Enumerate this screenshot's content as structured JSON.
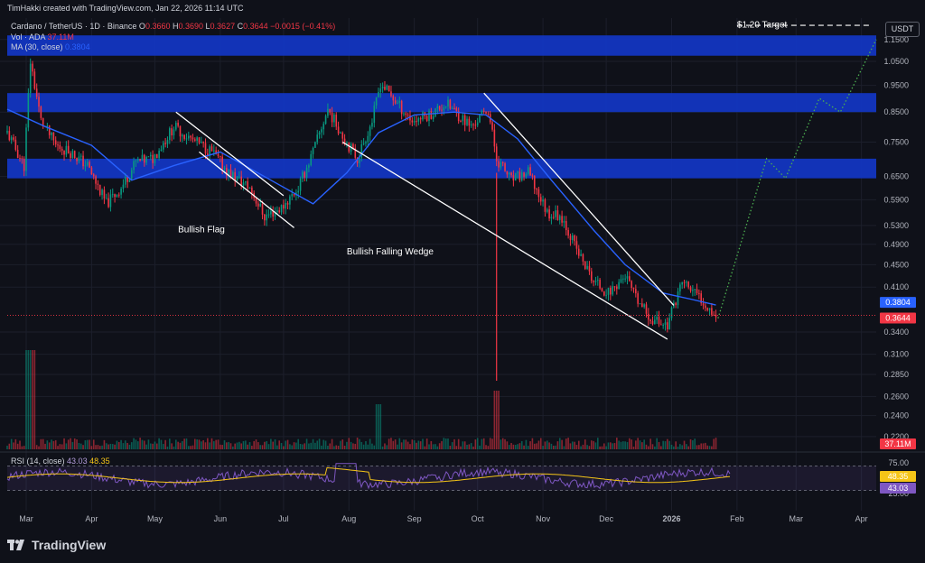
{
  "header": {
    "attribution": "TimHakki created with TradingView.com, Jan 22, 2026 11:14 UTC"
  },
  "legend": {
    "symbol": "Cardano / TetherUS · 1D · Binance",
    "o_label": "O",
    "o_value": "0.3660",
    "h_label": "H",
    "h_value": "0.3690",
    "l_label": "L",
    "l_value": "0.3627",
    "c_label": "C",
    "c_value": "0.3644",
    "change": "−0.0015 (−0.41%)",
    "vol_label": "Vol · ADA",
    "vol_value": "37.11M",
    "ma_label": "MA (30, close)",
    "ma_value": "0.3804",
    "rsi_label": "RSI (14, close)",
    "rsi_value": "43.03",
    "rsi_ma_value": "48.35"
  },
  "currency_button": "USDT",
  "footer": {
    "brand": "TradingView"
  },
  "colors": {
    "background": "#0f1119",
    "up": "#089981",
    "down": "#f23645",
    "ma": "#2962ff",
    "zone": "#1236c4",
    "rsi": "#7e57c2",
    "rsi_ma": "#f5c518",
    "projection": "#4caf50",
    "trendline": "#ffffff"
  },
  "chart_data": {
    "type": "candlestick",
    "scale": "log",
    "x_ticks": [
      "Mar",
      "Apr",
      "May",
      "Jun",
      "Jul",
      "Aug",
      "Sep",
      "Oct",
      "Nov",
      "Dec",
      "2026",
      "Feb",
      "Mar",
      "Apr"
    ],
    "y_ticks": [
      "1.1500",
      "1.0500",
      "0.9500",
      "0.8500",
      "0.7500",
      "0.6500",
      "0.5900",
      "0.5300",
      "0.4900",
      "0.4500",
      "0.4100",
      "0.3400",
      "0.3100",
      "0.2850",
      "0.2600",
      "0.2400",
      "0.2200"
    ],
    "price_labels": {
      "ma": "0.3804",
      "last": "0.3644",
      "volume": "37.11M"
    },
    "rsi_ticks": [
      "75.00",
      "25.00"
    ],
    "rsi_labels": {
      "rsi_ma": "48.35",
      "rsi": "43.03"
    },
    "price_path": [
      [
        "2025-02-20",
        0.78
      ],
      [
        "2025-02-28",
        0.68
      ],
      [
        "2025-03-03",
        1.05
      ],
      [
        "2025-03-08",
        0.82
      ],
      [
        "2025-03-15",
        0.74
      ],
      [
        "2025-03-22",
        0.72
      ],
      [
        "2025-03-30",
        0.68
      ],
      [
        "2025-04-08",
        0.58
      ],
      [
        "2025-04-15",
        0.62
      ],
      [
        "2025-04-22",
        0.69
      ],
      [
        "2025-04-30",
        0.7
      ],
      [
        "2025-05-10",
        0.8
      ],
      [
        "2025-05-18",
        0.76
      ],
      [
        "2025-05-28",
        0.72
      ],
      [
        "2025-06-05",
        0.66
      ],
      [
        "2025-06-15",
        0.62
      ],
      [
        "2025-06-22",
        0.55
      ],
      [
        "2025-06-30",
        0.57
      ],
      [
        "2025-07-08",
        0.62
      ],
      [
        "2025-07-15",
        0.72
      ],
      [
        "2025-07-22",
        0.86
      ],
      [
        "2025-07-30",
        0.76
      ],
      [
        "2025-08-05",
        0.7
      ],
      [
        "2025-08-12",
        0.82
      ],
      [
        "2025-08-16",
        0.96
      ],
      [
        "2025-08-24",
        0.88
      ],
      [
        "2025-08-31",
        0.82
      ],
      [
        "2025-09-08",
        0.84
      ],
      [
        "2025-09-16",
        0.88
      ],
      [
        "2025-09-22",
        0.84
      ],
      [
        "2025-09-28",
        0.8
      ],
      [
        "2025-10-06",
        0.86
      ],
      [
        "2025-10-10",
        0.7
      ],
      [
        "2025-10-17",
        0.64
      ],
      [
        "2025-10-25",
        0.66
      ],
      [
        "2025-11-03",
        0.56
      ],
      [
        "2025-11-10",
        0.55
      ],
      [
        "2025-11-18",
        0.47
      ],
      [
        "2025-11-25",
        0.42
      ],
      [
        "2025-12-02",
        0.4
      ],
      [
        "2025-12-10",
        0.43
      ],
      [
        "2025-12-15",
        0.39
      ],
      [
        "2025-12-22",
        0.36
      ],
      [
        "2025-12-30",
        0.35
      ],
      [
        "2026-01-03",
        0.39
      ],
      [
        "2026-01-06",
        0.42
      ],
      [
        "2026-01-12",
        0.4
      ],
      [
        "2026-01-18",
        0.38
      ],
      [
        "2026-01-22",
        0.3644
      ]
    ],
    "ma_path": [
      [
        "2025-02-20",
        0.86
      ],
      [
        "2025-03-10",
        0.8
      ],
      [
        "2025-04-01",
        0.74
      ],
      [
        "2025-04-20",
        0.64
      ],
      [
        "2025-05-10",
        0.68
      ],
      [
        "2025-06-01",
        0.72
      ],
      [
        "2025-06-25",
        0.64
      ],
      [
        "2025-07-15",
        0.58
      ],
      [
        "2025-07-31",
        0.66
      ],
      [
        "2025-08-15",
        0.78
      ],
      [
        "2025-09-01",
        0.84
      ],
      [
        "2025-09-20",
        0.85
      ],
      [
        "2025-10-05",
        0.84
      ],
      [
        "2025-10-20",
        0.76
      ],
      [
        "2025-11-05",
        0.64
      ],
      [
        "2025-11-25",
        0.52
      ],
      [
        "2025-12-10",
        0.45
      ],
      [
        "2025-12-28",
        0.4
      ],
      [
        "2026-01-10",
        0.39
      ],
      [
        "2026-01-22",
        0.3804
      ]
    ],
    "zones": [
      {
        "from": 1.075,
        "to": 1.17
      },
      {
        "from": 0.85,
        "to": 0.92
      },
      {
        "from": 0.645,
        "to": 0.7
      }
    ],
    "annotations": [
      {
        "text": "Bullish Flag",
        "date": "2025-05-12",
        "price": 0.515
      },
      {
        "text": "Bullish Falling Wedge",
        "date": "2025-07-31",
        "price": 0.47
      },
      {
        "text": "$1.20 Target",
        "date": "2026-02-01",
        "price": 1.21
      }
    ],
    "trendlines": [
      [
        "2025-05-11",
        0.85,
        "2025-07-01",
        0.6
      ],
      [
        "2025-05-22",
        0.72,
        "2025-07-06",
        0.525
      ],
      [
        "2025-07-29",
        0.75,
        "2025-12-30",
        0.33
      ],
      [
        "2025-10-04",
        0.92,
        "2026-01-02",
        0.38
      ]
    ],
    "target_line": {
      "price": 1.22,
      "from": "2026-02-01",
      "to": "2026-04-05"
    },
    "projection": [
      [
        "2026-01-23",
        0.36
      ],
      [
        "2026-02-15",
        0.7
      ],
      [
        "2026-02-24",
        0.645
      ],
      [
        "2026-03-12",
        0.9
      ],
      [
        "2026-03-22",
        0.85
      ],
      [
        "2026-04-08",
        1.15
      ]
    ],
    "volume_note": "spikes early March and around Oct 10",
    "rsi_overbought_touch": "2025-07-20"
  }
}
